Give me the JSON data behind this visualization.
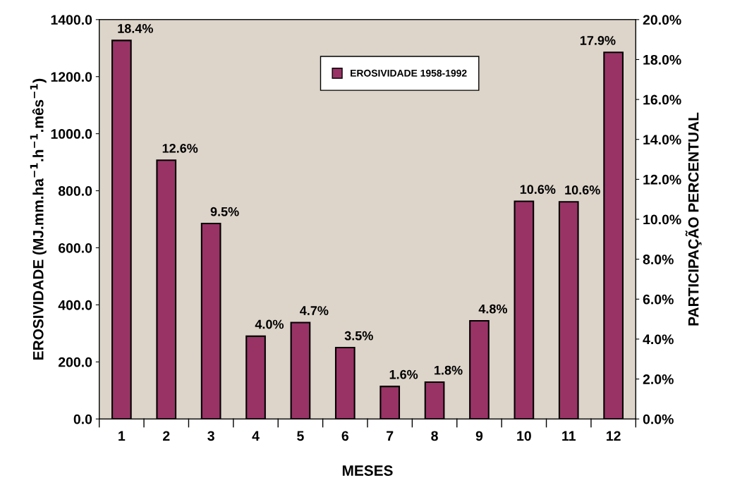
{
  "chart_data": {
    "type": "bar",
    "xlabel": "MESES",
    "ylabel": "EROSIVIDADE (MJ.mm.ha$^{−1}$.h$^{−1}$.mês$^{−1}$)",
    "y2label": "PARTICIPAÇÃO PERCENTUAL",
    "categories": [
      "1",
      "2",
      "3",
      "4",
      "5",
      "6",
      "7",
      "8",
      "9",
      "10",
      "11",
      "12"
    ],
    "series": [
      {
        "name": "EROSIVIDADE 1958-1992",
        "color": "#993366",
        "values": [
          1327,
          907,
          685,
          290,
          338,
          250,
          114,
          129,
          344,
          763,
          761,
          1285
        ]
      }
    ],
    "annotations": [
      {
        "text": "18.4%",
        "x": "1",
        "y": 1327
      },
      {
        "text": "12.6%",
        "x": "2",
        "y": 907
      },
      {
        "text": "9.5%",
        "x": "3",
        "y": 685
      },
      {
        "text": "4.0%",
        "x": "4",
        "y": 290
      },
      {
        "text": "4.7%",
        "x": "5",
        "y": 338
      },
      {
        "text": "3.5%",
        "x": "6",
        "y": 250
      },
      {
        "text": "1.6%",
        "x": "7",
        "y": 114
      },
      {
        "text": "1.8%",
        "x": "8",
        "y": 129
      },
      {
        "text": "4.8%",
        "x": "9",
        "y": 344
      },
      {
        "text": "10.6%",
        "x": "10",
        "y": 763
      },
      {
        "text": "10.6%",
        "x": "11",
        "y": 761
      },
      {
        "text": "17.9%",
        "x": "12",
        "y": 1285
      }
    ],
    "ylim": [
      0,
      1400
    ],
    "yticks": [
      {
        "value": 0,
        "label": "0.0"
      },
      {
        "value": 200,
        "label": "200.0"
      },
      {
        "value": 400,
        "label": "400.0"
      },
      {
        "value": 600,
        "label": "600.0"
      },
      {
        "value": 800,
        "label": "800.0"
      },
      {
        "value": 1000,
        "label": "1000.0"
      },
      {
        "value": 1200,
        "label": "1200.0"
      },
      {
        "value": 1400,
        "label": "1400.0"
      }
    ],
    "y2lim": [
      0,
      20
    ],
    "y2ticks": [
      {
        "value": 0,
        "label": "0.0%"
      },
      {
        "value": 2,
        "label": "2.0%"
      },
      {
        "value": 4,
        "label": "4.0%"
      },
      {
        "value": 6,
        "label": "6.0%"
      },
      {
        "value": 8,
        "label": "8.0%"
      },
      {
        "value": 10,
        "label": "10.0%"
      },
      {
        "value": 12,
        "label": "12.0%"
      },
      {
        "value": 14,
        "label": "14.0%"
      },
      {
        "value": 16,
        "label": "16.0%"
      },
      {
        "value": 18,
        "label": "18.0%"
      },
      {
        "value": 20,
        "label": "20.0%"
      }
    ],
    "grid": false,
    "legend": "top"
  }
}
